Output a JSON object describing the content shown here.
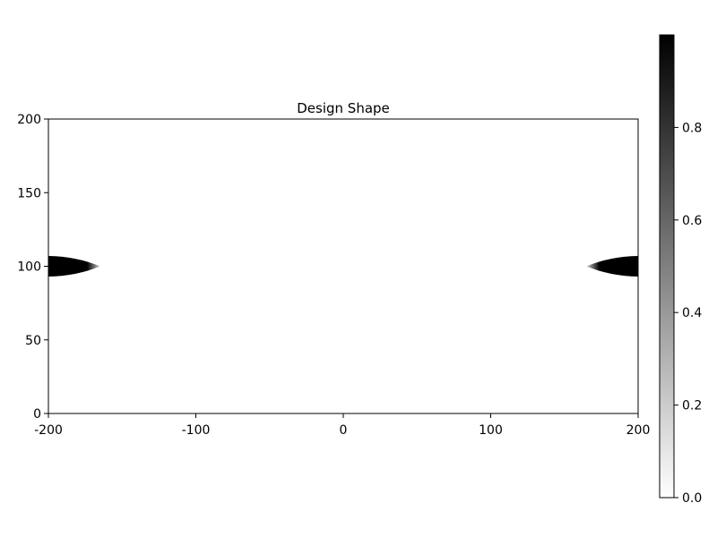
{
  "chart_data": {
    "type": "heatmap",
    "title": "Design Shape",
    "xlabel": "",
    "ylabel": "",
    "xlim": [
      -200,
      200
    ],
    "ylim": [
      0,
      200
    ],
    "x_ticks": [
      "-200",
      "-100",
      "0",
      "100",
      "200"
    ],
    "y_ticks": [
      "0",
      "50",
      "100",
      "150",
      "200"
    ],
    "grid": false,
    "colormap": "grayscale (white = 0, black = 1)",
    "colorbar": {
      "range": [
        0.0,
        1.0
      ],
      "ticks": [
        "0.0",
        "0.2",
        "0.4",
        "0.6",
        "0.8"
      ]
    },
    "shapes": [
      {
        "name": "left-lobe",
        "base_x": -200,
        "tip_x": -165,
        "center_y": 100,
        "half_width_y": 7,
        "value": 1.0
      },
      {
        "name": "right-lobe",
        "base_x": 200,
        "tip_x": 165,
        "center_y": 100,
        "half_width_y": 7,
        "value": 1.0
      }
    ]
  },
  "colors": {
    "high": "#000000",
    "low": "#ffffff",
    "axis": "#000000"
  }
}
